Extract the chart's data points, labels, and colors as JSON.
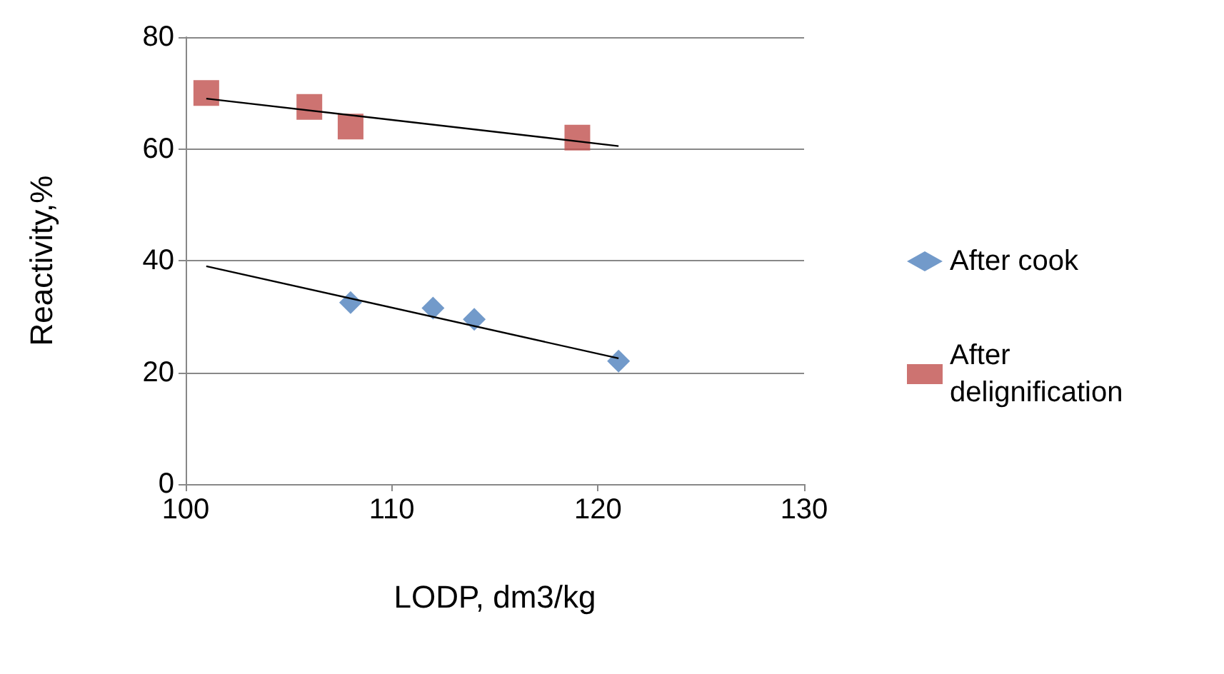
{
  "chart_data": {
    "type": "scatter",
    "xlabel": "LODP, dm3/kg",
    "ylabel": "Reactivity,%",
    "series": [
      {
        "name": "After cook",
        "color": "#4f81bd",
        "marker": "diamond",
        "x": [
          108,
          112,
          114,
          121
        ],
        "values": [
          32.5,
          31.5,
          29.5,
          22
        ]
      },
      {
        "name": "After delignification",
        "color": "#c0504d",
        "marker": "square",
        "x": [
          101,
          106,
          108,
          119
        ],
        "values": [
          70,
          67.5,
          64,
          62
        ]
      },
      {
        "type": "line",
        "color": "#000000",
        "marker": "none",
        "x": [
          101,
          121
        ],
        "values": [
          39,
          22.5
        ]
      },
      {
        "type": "line",
        "color": "#000000",
        "marker": "none",
        "x": [
          101,
          121
        ],
        "values": [
          69,
          60.5
        ]
      }
    ],
    "xlim": [
      100,
      130
    ],
    "xticks": [
      100,
      110,
      120,
      130
    ],
    "ylim": [
      0,
      80
    ],
    "yticks": [
      0,
      20,
      40,
      60,
      80
    ],
    "grid": "y",
    "legend": "right"
  }
}
